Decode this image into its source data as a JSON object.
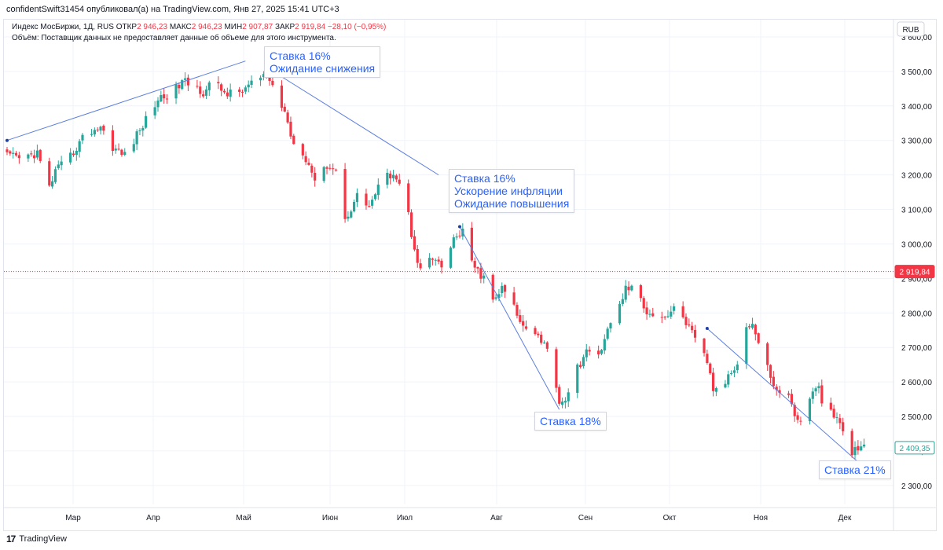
{
  "header": {
    "text": "confidentSwift31454 опубликовал(а) на TradingView.com, Янв 27, 2025 15:41 UTC+3"
  },
  "legend": {
    "title": "Индекс МосБиржи, 1Д, RUS",
    "open_label": "ОТКР",
    "open_value": "2 946,23",
    "high_label": "МАКС",
    "high_value": "2 946,23",
    "low_label": "МИН",
    "low_value": "2 907,87",
    "close_label": "ЗАКР",
    "close_value": "2 919,84",
    "change": "−28,10 (−0,95%)",
    "volume_note": "Объём: Поставщик данных не предоставляет данные об объеме для этого инструмента."
  },
  "currency": "RUB",
  "footer": {
    "logo": "17",
    "brand": "TradingView"
  },
  "colors": {
    "up": "#26a69a",
    "down": "#f23645",
    "line": "#5b7fde",
    "grid": "#f0f3fa",
    "text": "#131722"
  },
  "annotations": [
    {
      "lines": [
        "Ставка 16%",
        "Ожидание снижения"
      ]
    },
    {
      "lines": [
        "Ставка 16%",
        "Ускорение инфляции",
        "Ожидание повышения"
      ]
    },
    {
      "lines": [
        "Ставка 18%"
      ]
    },
    {
      "lines": [
        "Ставка 21%"
      ]
    }
  ],
  "chart_data": {
    "type": "candlestick",
    "instrument": "Индекс МосБиржи",
    "y_ticks": [
      2300,
      2400,
      2500,
      2600,
      2700,
      2800,
      2900,
      3000,
      3100,
      3200,
      3300,
      3400,
      3500,
      3600
    ],
    "y_tick_labels": [
      "2 300,00",
      "2 400,00",
      "2 500,00",
      "2 600,00",
      "2 700,00",
      "2 800,00",
      "2 900,00",
      "3 000,00",
      "3 100,00",
      "3 200,00",
      "3 300,00",
      "3 400,00",
      "3 500,00",
      "3 600,00"
    ],
    "ylim": [
      2245,
      3650
    ],
    "x_labels": [
      "Мар",
      "Апр",
      "Май",
      "Июн",
      "Июл",
      "Авг",
      "Сен",
      "Окт",
      "Ноя",
      "Дек"
    ],
    "price_line": {
      "value": 2919.84,
      "label": "2 919,84"
    },
    "last_price": {
      "value": 2409.35,
      "label": "2 409,35"
    },
    "trend_lines": [
      {
        "from": [
          0,
          3300
        ],
        "to": [
          79,
          3530
        ]
      },
      {
        "from": [
          90,
          3490
        ],
        "to": [
          143,
          3200
        ]
      },
      {
        "from": [
          150,
          3050
        ],
        "to": [
          183,
          2520
        ]
      },
      {
        "from": [
          232,
          2755
        ],
        "to": [
          285,
          2345
        ]
      }
    ],
    "path_points": [
      [
        0,
        3255
      ],
      [
        5,
        3245
      ],
      [
        10,
        3265
      ],
      [
        12,
        3200
      ],
      [
        13,
        3140
      ],
      [
        16,
        3210
      ],
      [
        20,
        3240
      ],
      [
        26,
        3320
      ],
      [
        31,
        3340
      ],
      [
        34,
        3290
      ],
      [
        38,
        3260
      ],
      [
        40,
        3260
      ],
      [
        42,
        3300
      ],
      [
        46,
        3360
      ],
      [
        50,
        3420
      ],
      [
        55,
        3440
      ],
      [
        58,
        3470
      ],
      [
        62,
        3460
      ],
      [
        65,
        3440
      ],
      [
        68,
        3470
      ],
      [
        72,
        3440
      ],
      [
        76,
        3430
      ],
      [
        80,
        3460
      ],
      [
        86,
        3490
      ],
      [
        89,
        3440
      ],
      [
        92,
        3380
      ],
      [
        95,
        3290
      ],
      [
        98,
        3270
      ],
      [
        100,
        3230
      ],
      [
        103,
        3170
      ],
      [
        106,
        3230
      ],
      [
        110,
        3210
      ],
      [
        112,
        3070
      ],
      [
        116,
        3140
      ],
      [
        120,
        3110
      ],
      [
        124,
        3180
      ],
      [
        128,
        3210
      ],
      [
        132,
        3140
      ],
      [
        134,
        3030
      ],
      [
        137,
        2920
      ],
      [
        140,
        2960
      ],
      [
        144,
        2930
      ],
      [
        148,
        3010
      ],
      [
        151,
        3040
      ],
      [
        153,
        2950
      ],
      [
        155,
        2930
      ],
      [
        158,
        2900
      ],
      [
        160,
        2820
      ],
      [
        164,
        2870
      ],
      [
        167,
        2840
      ],
      [
        170,
        2770
      ],
      [
        174,
        2760
      ],
      [
        178,
        2710
      ],
      [
        181,
        2650
      ],
      [
        183,
        2540
      ],
      [
        186,
        2560
      ],
      [
        189,
        2640
      ],
      [
        192,
        2690
      ],
      [
        195,
        2650
      ],
      [
        198,
        2730
      ],
      [
        202,
        2800
      ],
      [
        205,
        2870
      ],
      [
        208,
        2880
      ],
      [
        211,
        2810
      ],
      [
        214,
        2800
      ],
      [
        218,
        2790
      ],
      [
        221,
        2810
      ],
      [
        224,
        2790
      ],
      [
        228,
        2720
      ],
      [
        232,
        2660
      ],
      [
        234,
        2580
      ],
      [
        236,
        2560
      ],
      [
        239,
        2620
      ],
      [
        242,
        2660
      ],
      [
        244,
        2750
      ],
      [
        247,
        2770
      ],
      [
        250,
        2680
      ],
      [
        253,
        2620
      ],
      [
        255,
        2570
      ],
      [
        258,
        2580
      ],
      [
        261,
        2510
      ],
      [
        264,
        2460
      ],
      [
        266,
        2560
      ],
      [
        269,
        2580
      ],
      [
        271,
        2520
      ],
      [
        274,
        2500
      ],
      [
        277,
        2460
      ],
      [
        279,
        2360
      ],
      [
        281,
        2409
      ]
    ]
  }
}
